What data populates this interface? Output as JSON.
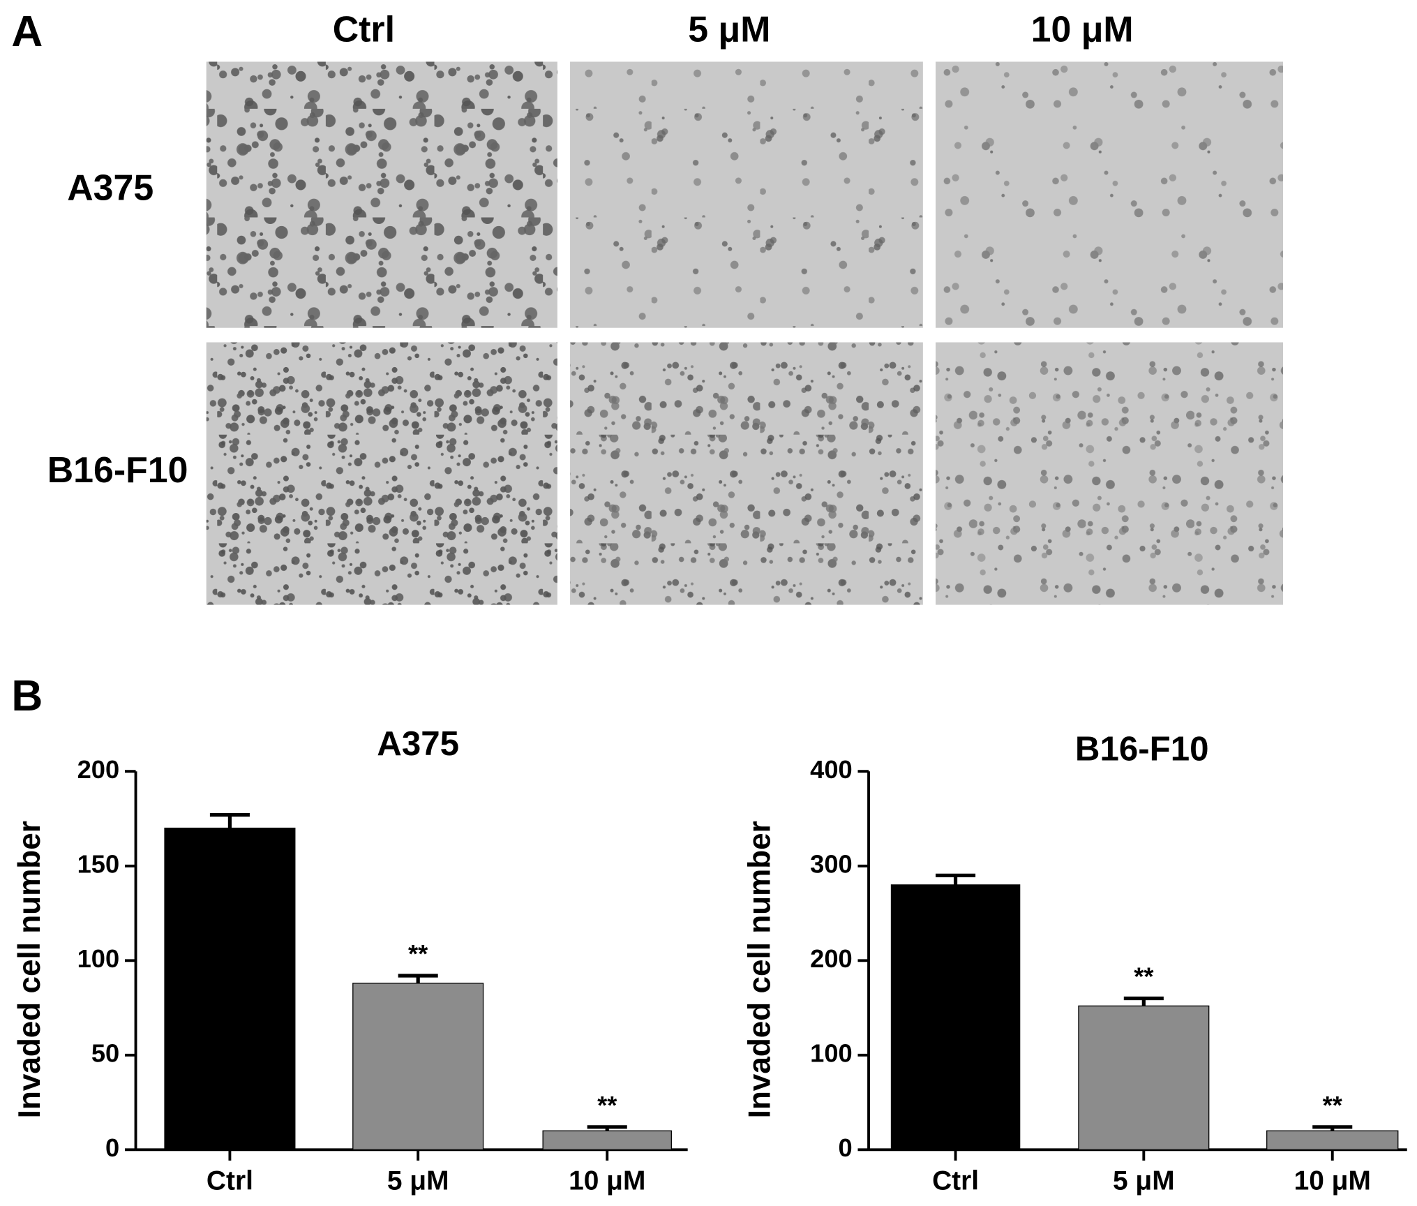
{
  "panel_a": {
    "label": "A",
    "columns": [
      "Ctrl",
      "5 μM",
      "10 μM"
    ],
    "rows": [
      "A375",
      "B16-F10"
    ]
  },
  "panel_b": {
    "label": "B"
  },
  "chart_data": [
    {
      "type": "bar",
      "title": "A375",
      "y_label": "Invaded cell number",
      "categories": [
        "Ctrl",
        "5 μM",
        "10 μM"
      ],
      "values": [
        170,
        88,
        10
      ],
      "errors": [
        7,
        4,
        2
      ],
      "annotations": [
        null,
        "**",
        "**"
      ],
      "colors": [
        "#000000",
        "#8c8c8c",
        "#8c8c8c"
      ],
      "ylim": [
        0,
        200
      ],
      "yticks": [
        0,
        50,
        100,
        150,
        200
      ]
    },
    {
      "type": "bar",
      "title": "B16-F10",
      "y_label": "Invaded cell number",
      "categories": [
        "Ctrl",
        "5 μM",
        "10 μM"
      ],
      "values": [
        280,
        152,
        20
      ],
      "errors": [
        10,
        8,
        4
      ],
      "annotations": [
        null,
        "**",
        "**"
      ],
      "colors": [
        "#000000",
        "#8c8c8c",
        "#8c8c8c"
      ],
      "ylim": [
        0,
        400
      ],
      "yticks": [
        0,
        100,
        200,
        300,
        400
      ]
    }
  ]
}
